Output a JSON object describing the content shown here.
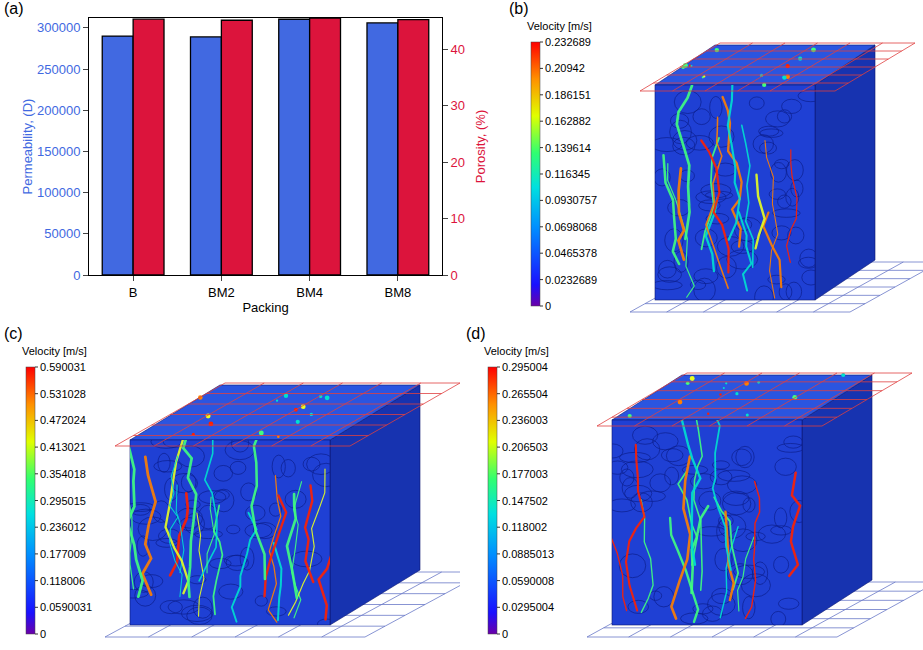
{
  "chart_data": [
    {
      "type": "bar",
      "label": "(a)",
      "categories": [
        "B",
        "BM2",
        "BM4",
        "BM8"
      ],
      "xlabel": "Packing",
      "ylabel": "Permeability, (D)",
      "y2label": "Porosity, (%)",
      "series": [
        {
          "color": "#4169e1",
          "values": [
            290000,
            289000,
            310500,
            306000
          ]
        },
        {
          "color": "#dc143c",
          "axis": "y2",
          "values": [
            45.3,
            45.1,
            45.5,
            45.2
          ]
        }
      ],
      "ylim": [
        0,
        312000
      ],
      "yticks": [
        0,
        50000,
        100000,
        150000,
        200000,
        250000,
        300000
      ],
      "y2lim": [
        0,
        45.5
      ],
      "y2ticks": [
        0,
        10,
        20,
        30,
        40
      ],
      "grid": false
    },
    {
      "type": "velocity_field",
      "label": "(b)",
      "colorbar": {
        "title": "Velocity [m/s]",
        "range": [
          0,
          0.232689
        ],
        "ticks": [
          0,
          0.0232689,
          0.0465378,
          0.0698068,
          0.0930757,
          0.116345,
          0.139614,
          0.162882,
          0.186151,
          0.20942,
          0.232689
        ]
      }
    },
    {
      "type": "velocity_field",
      "label": "(c)",
      "colorbar": {
        "title": "Velocity [m/s]",
        "range": [
          0,
          0.590031
        ],
        "ticks": [
          0,
          0.0590031,
          0.118006,
          0.177009,
          0.236012,
          0.295015,
          0.354018,
          0.413021,
          0.472024,
          0.531028,
          0.590031
        ]
      }
    },
    {
      "type": "velocity_field",
      "label": "(d)",
      "colorbar": {
        "title": "Velocity [m/s]",
        "range": [
          0,
          0.295004
        ],
        "ticks": [
          0,
          0.0295004,
          0.0590008,
          0.0885013,
          0.118002,
          0.147502,
          0.177003,
          0.206503,
          0.236003,
          0.265504,
          0.295004
        ]
      }
    }
  ]
}
